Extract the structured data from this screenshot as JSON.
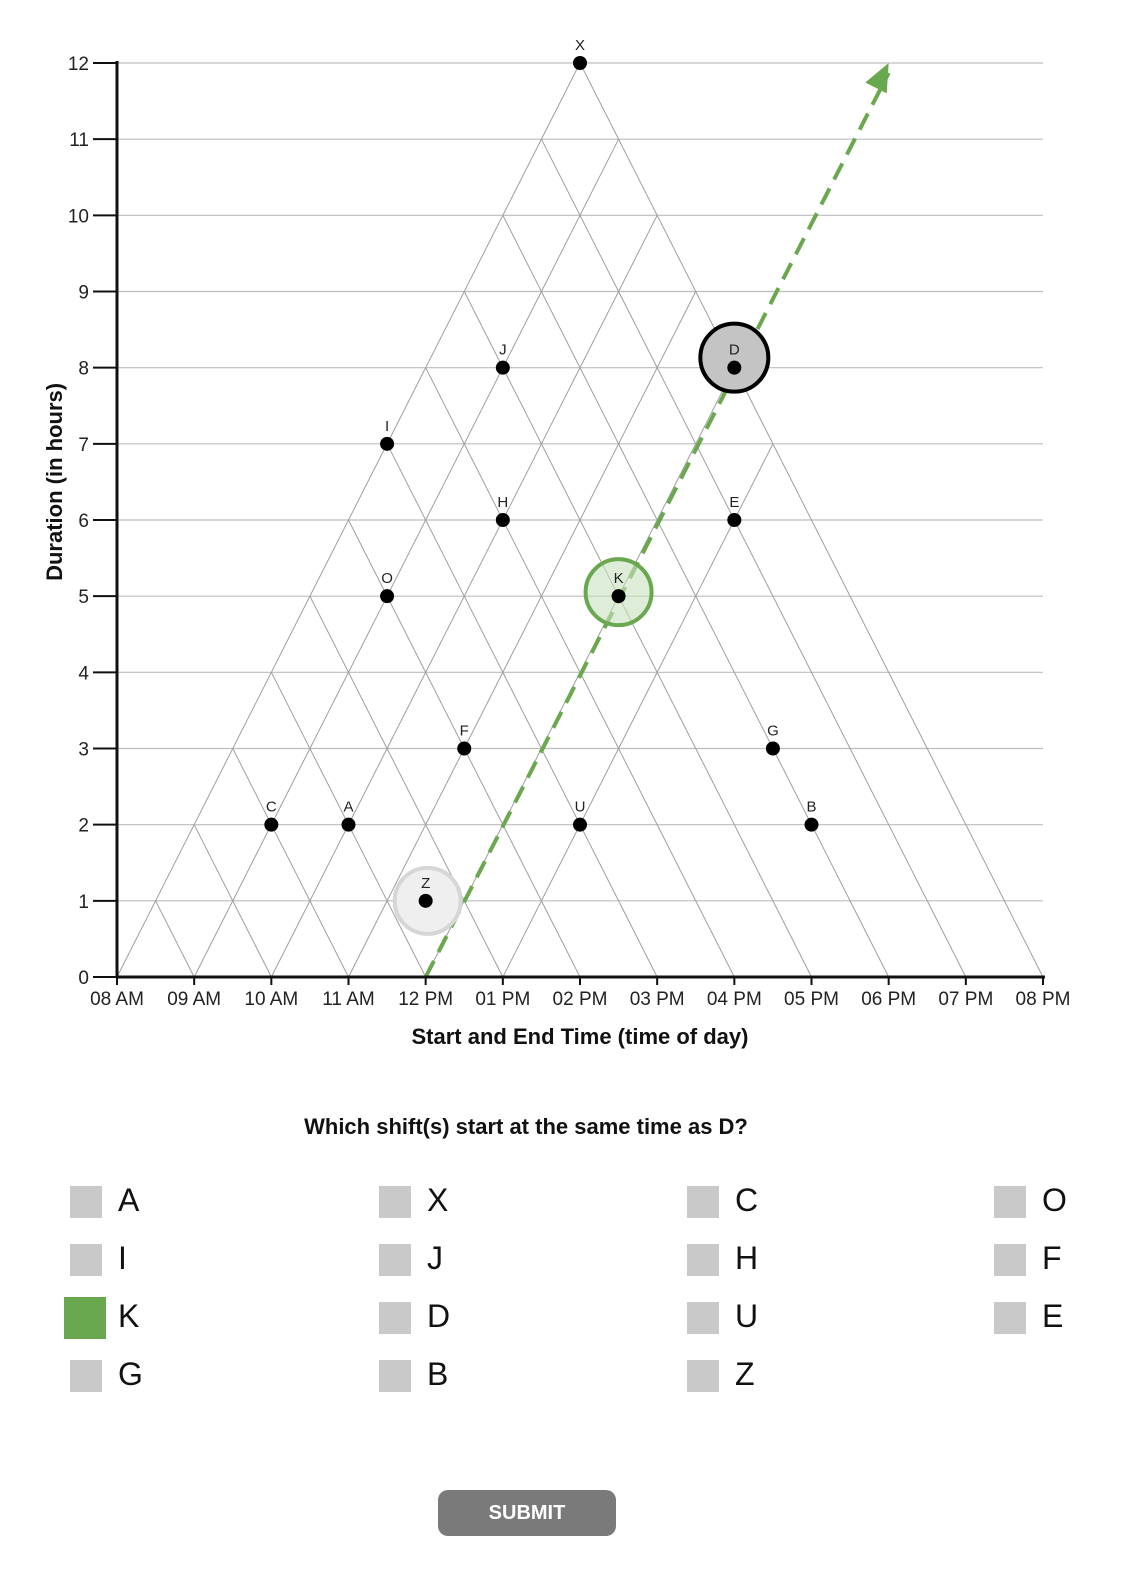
{
  "chart_data": {
    "type": "scatter",
    "xlabel": "Start and End Time (time of day)",
    "ylabel": "Duration (in hours)",
    "x_tick_labels": [
      "08 AM",
      "09 AM",
      "10 AM",
      "11 AM",
      "12 PM",
      "01 PM",
      "02 PM",
      "03 PM",
      "04 PM",
      "05 PM",
      "06 PM",
      "07 PM",
      "08 PM"
    ],
    "y_tick_labels": [
      "0",
      "1",
      "2",
      "3",
      "4",
      "5",
      "6",
      "7",
      "8",
      "9",
      "10",
      "11",
      "12"
    ],
    "xlim": [
      8,
      20
    ],
    "ylim": [
      0,
      12
    ],
    "grid": true,
    "points": [
      {
        "label": "X",
        "x": 14,
        "y": 12
      },
      {
        "label": "J",
        "x": 13,
        "y": 8
      },
      {
        "label": "D",
        "x": 16,
        "y": 8
      },
      {
        "label": "I",
        "x": 11.5,
        "y": 7
      },
      {
        "label": "H",
        "x": 13,
        "y": 6
      },
      {
        "label": "E",
        "x": 16,
        "y": 6
      },
      {
        "label": "O",
        "x": 11.5,
        "y": 5
      },
      {
        "label": "K",
        "x": 14.5,
        "y": 5
      },
      {
        "label": "F",
        "x": 12.5,
        "y": 3
      },
      {
        "label": "G",
        "x": 16.5,
        "y": 3
      },
      {
        "label": "C",
        "x": 10,
        "y": 2
      },
      {
        "label": "A",
        "x": 11,
        "y": 2
      },
      {
        "label": "U",
        "x": 14,
        "y": 2
      },
      {
        "label": "B",
        "x": 17,
        "y": 2
      },
      {
        "label": "Z",
        "x": 12,
        "y": 1
      }
    ],
    "highlights": [
      {
        "label": "D",
        "style": "selected",
        "color": "#000000"
      },
      {
        "label": "K",
        "style": "answer",
        "color": "#6aa84f"
      },
      {
        "label": "Z",
        "style": "faded",
        "color": "#cccccc"
      }
    ],
    "guide_line": {
      "from_start_hour": 12,
      "color": "#6aa84f",
      "dashed": true
    }
  },
  "question": "Which shift(s) start at the same time as D?",
  "options": [
    {
      "label": "A",
      "checked": false
    },
    {
      "label": "X",
      "checked": false
    },
    {
      "label": "C",
      "checked": false
    },
    {
      "label": "O",
      "checked": false
    },
    {
      "label": "I",
      "checked": false
    },
    {
      "label": "J",
      "checked": false
    },
    {
      "label": "H",
      "checked": false
    },
    {
      "label": "F",
      "checked": false
    },
    {
      "label": "K",
      "checked": true
    },
    {
      "label": "D",
      "checked": false
    },
    {
      "label": "U",
      "checked": false
    },
    {
      "label": "E",
      "checked": false
    },
    {
      "label": "G",
      "checked": false
    },
    {
      "label": "B",
      "checked": false
    },
    {
      "label": "Z",
      "checked": false
    }
  ],
  "submit_label": "SUBMIT",
  "colors": {
    "accent": "#6aa84f",
    "checkbox": "#c9c9c9",
    "button": "#7a7a7a"
  }
}
